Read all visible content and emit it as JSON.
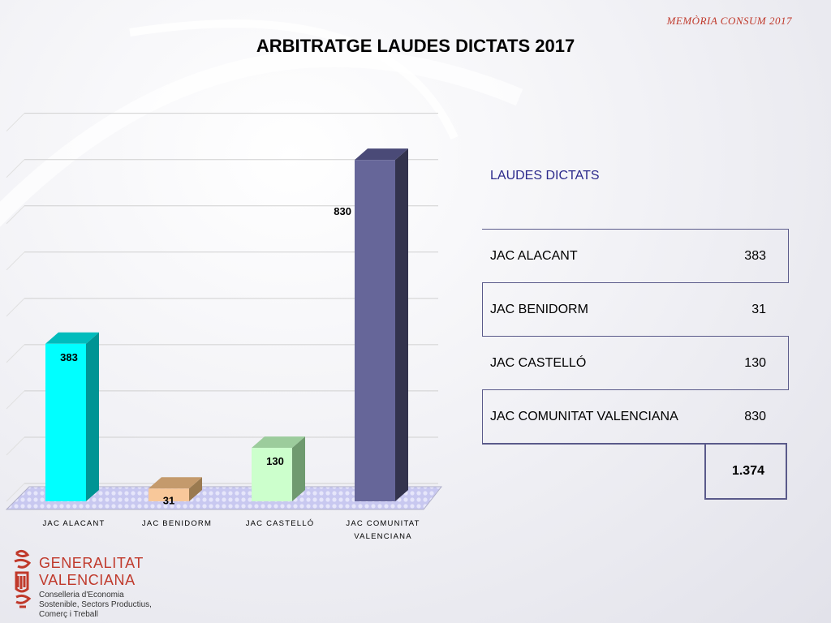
{
  "header_note": "MEMÒRIA CONSUM 2017",
  "chart_data": {
    "type": "bar",
    "title": "ARBITRATGE LAUDES DICTATS 2017",
    "categories": [
      "JAC ALACANT",
      "JAC BENIDORM",
      "JAC CASTELLÓ",
      "JAC COMUNITAT VALENCIANA"
    ],
    "category_lines": [
      [
        "JAC ALACANT"
      ],
      [
        "JAC BENIDORM"
      ],
      [
        "JAC CASTELLÓ"
      ],
      [
        "JAC COMUNITAT",
        "VALENCIANA"
      ]
    ],
    "values": [
      383,
      31,
      130,
      830
    ],
    "value_labels": [
      "383",
      "31",
      "130",
      "830"
    ],
    "colors": [
      "#00ffff",
      "#f8c89a",
      "#ccffcc",
      "#666699"
    ],
    "side_colors": [
      "#009494",
      "#9a7a50",
      "#6f9a6f",
      "#33334d"
    ],
    "top_colors": [
      "#00bcbc",
      "#c49a6c",
      "#9ccc9c",
      "#4a4a77"
    ],
    "ylim": [
      0,
      900
    ],
    "grid": true,
    "legend": "none"
  },
  "table": {
    "heading": "LAUDES DICTATS",
    "rows": [
      {
        "name": "JAC ALACANT",
        "value": "383"
      },
      {
        "name": "JAC BENIDORM",
        "value": "31"
      },
      {
        "name": "JAC CASTELLÓ",
        "value": "130"
      },
      {
        "name": "JAC COMUNITAT VALENCIANA",
        "value": "830"
      }
    ],
    "total": "1.374"
  },
  "logo": {
    "name_line1": "GENERALITAT",
    "name_line2": "VALENCIANA",
    "sub_line1": "Conselleria d'Economia",
    "sub_line2": "Sostenible, Sectors Productius,",
    "sub_line3": "Comerç i Treball",
    "color": "#c0392b"
  }
}
